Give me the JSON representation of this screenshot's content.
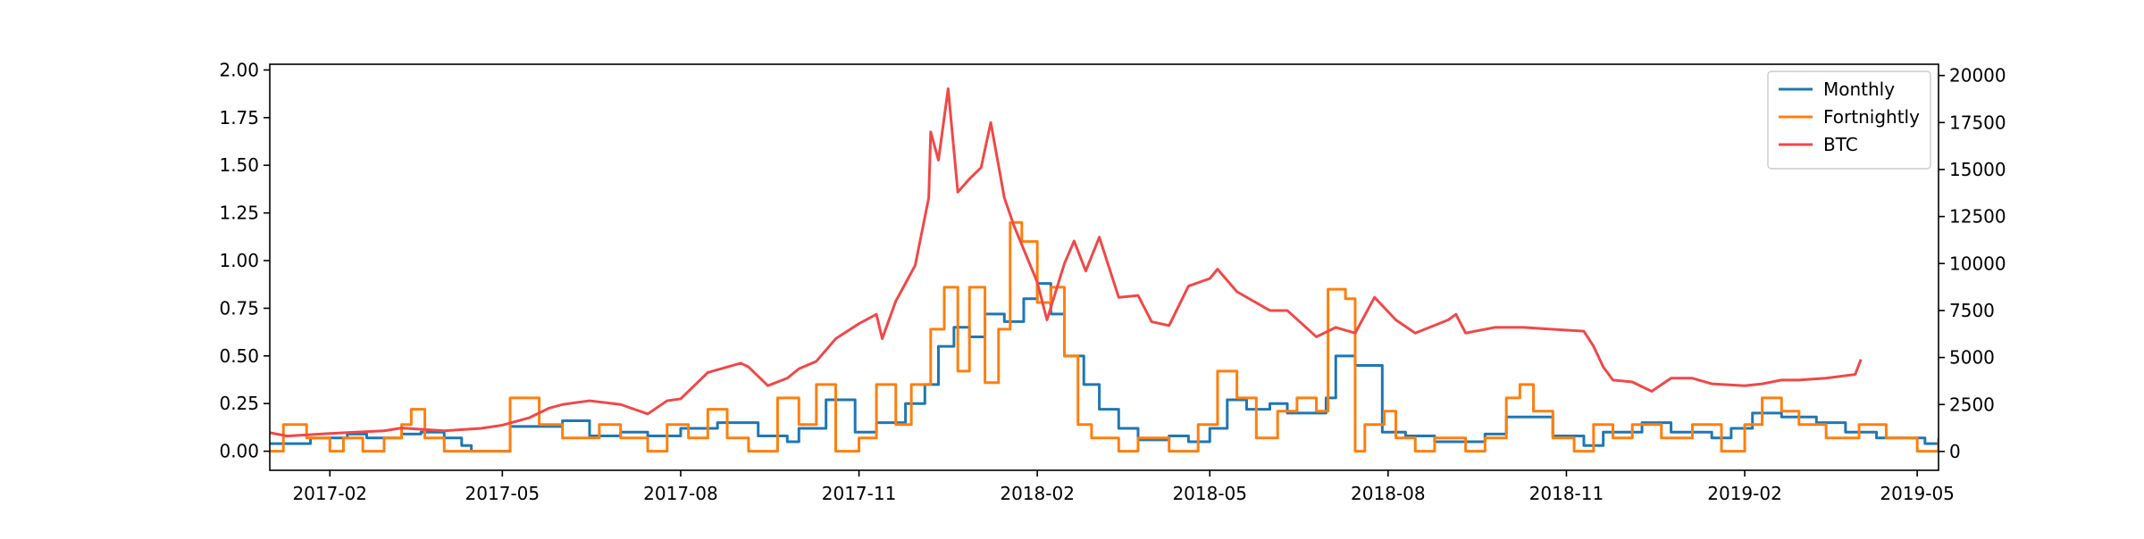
{
  "chart_data": {
    "type": "line",
    "title": "",
    "xlabel": "",
    "ylabel": "",
    "y2label": "",
    "x_range": [
      "2017-01-01",
      "2019-05-12"
    ],
    "ylim_left": [
      -0.1,
      2.03
    ],
    "ylim_right": [
      -1000,
      20600
    ],
    "x_ticks": [
      {
        "date": "2017-02-01",
        "label": "2017-02"
      },
      {
        "date": "2017-05-01",
        "label": "2017-05"
      },
      {
        "date": "2017-08-01",
        "label": "2017-08"
      },
      {
        "date": "2017-11-01",
        "label": "2017-11"
      },
      {
        "date": "2018-02-01",
        "label": "2018-02"
      },
      {
        "date": "2018-05-01",
        "label": "2018-05"
      },
      {
        "date": "2018-08-01",
        "label": "2018-08"
      },
      {
        "date": "2018-11-01",
        "label": "2018-11"
      },
      {
        "date": "2019-02-01",
        "label": "2019-02"
      },
      {
        "date": "2019-05-01",
        "label": "2019-05"
      }
    ],
    "y_ticks_left": [
      {
        "value": 0.0,
        "label": "0.00"
      },
      {
        "value": 0.25,
        "label": "0.25"
      },
      {
        "value": 0.5,
        "label": "0.50"
      },
      {
        "value": 0.75,
        "label": "0.75"
      },
      {
        "value": 1.0,
        "label": "1.00"
      },
      {
        "value": 1.25,
        "label": "1.25"
      },
      {
        "value": 1.5,
        "label": "1.50"
      },
      {
        "value": 1.75,
        "label": "1.75"
      },
      {
        "value": 2.0,
        "label": "2.00"
      }
    ],
    "y_ticks_right": [
      {
        "value": 0,
        "label": "0"
      },
      {
        "value": 2500,
        "label": "2500"
      },
      {
        "value": 5000,
        "label": "5000"
      },
      {
        "value": 7500,
        "label": "7500"
      },
      {
        "value": 10000,
        "label": "10000"
      },
      {
        "value": 12500,
        "label": "12500"
      },
      {
        "value": 15000,
        "label": "15000"
      },
      {
        "value": 17500,
        "label": "17500"
      },
      {
        "value": 20000,
        "label": "20000"
      }
    ],
    "grid": false,
    "legend_position": "top-right",
    "series": [
      {
        "name": "Monthly",
        "axis": "left",
        "color": "#1f77b4",
        "step": true,
        "points": [
          [
            "2017-01-01",
            0.04
          ],
          [
            "2017-01-22",
            0.07
          ],
          [
            "2017-02-10",
            0.09
          ],
          [
            "2017-02-20",
            0.07
          ],
          [
            "2017-03-10",
            0.09
          ],
          [
            "2017-03-20",
            0.1
          ],
          [
            "2017-04-01",
            0.07
          ],
          [
            "2017-04-10",
            0.03
          ],
          [
            "2017-04-15",
            0.0
          ],
          [
            "2017-05-01",
            0.0
          ],
          [
            "2017-05-05",
            0.13
          ],
          [
            "2017-06-01",
            0.16
          ],
          [
            "2017-06-15",
            0.08
          ],
          [
            "2017-07-01",
            0.1
          ],
          [
            "2017-07-15",
            0.08
          ],
          [
            "2017-08-01",
            0.12
          ],
          [
            "2017-08-20",
            0.15
          ],
          [
            "2017-09-10",
            0.08
          ],
          [
            "2017-09-25",
            0.05
          ],
          [
            "2017-10-01",
            0.12
          ],
          [
            "2017-10-15",
            0.27
          ],
          [
            "2017-10-30",
            0.1
          ],
          [
            "2017-11-10",
            0.15
          ],
          [
            "2017-11-25",
            0.25
          ],
          [
            "2017-12-05",
            0.35
          ],
          [
            "2017-12-12",
            0.55
          ],
          [
            "2017-12-20",
            0.65
          ],
          [
            "2017-12-28",
            0.6
          ],
          [
            "2018-01-05",
            0.72
          ],
          [
            "2018-01-15",
            0.68
          ],
          [
            "2018-01-25",
            0.8
          ],
          [
            "2018-02-01",
            0.88
          ],
          [
            "2018-02-08",
            0.72
          ],
          [
            "2018-02-15",
            0.5
          ],
          [
            "2018-02-25",
            0.35
          ],
          [
            "2018-03-05",
            0.22
          ],
          [
            "2018-03-15",
            0.12
          ],
          [
            "2018-03-25",
            0.06
          ],
          [
            "2018-04-10",
            0.08
          ],
          [
            "2018-04-20",
            0.05
          ],
          [
            "2018-05-01",
            0.12
          ],
          [
            "2018-05-10",
            0.27
          ],
          [
            "2018-05-20",
            0.22
          ],
          [
            "2018-06-01",
            0.25
          ],
          [
            "2018-06-10",
            0.2
          ],
          [
            "2018-06-20",
            0.2
          ],
          [
            "2018-06-30",
            0.28
          ],
          [
            "2018-07-05",
            0.5
          ],
          [
            "2018-07-15",
            0.45
          ],
          [
            "2018-07-25",
            0.45
          ],
          [
            "2018-07-29",
            0.1
          ],
          [
            "2018-08-10",
            0.08
          ],
          [
            "2018-08-25",
            0.05
          ],
          [
            "2018-09-10",
            0.05
          ],
          [
            "2018-09-20",
            0.09
          ],
          [
            "2018-10-01",
            0.18
          ],
          [
            "2018-10-15",
            0.18
          ],
          [
            "2018-10-25",
            0.08
          ],
          [
            "2018-11-10",
            0.03
          ],
          [
            "2018-11-20",
            0.1
          ],
          [
            "2018-12-10",
            0.15
          ],
          [
            "2018-12-25",
            0.1
          ],
          [
            "2019-01-15",
            0.07
          ],
          [
            "2019-01-25",
            0.12
          ],
          [
            "2019-02-05",
            0.2
          ],
          [
            "2019-02-20",
            0.18
          ],
          [
            "2019-03-10",
            0.15
          ],
          [
            "2019-03-25",
            0.1
          ],
          [
            "2019-04-10",
            0.07
          ],
          [
            "2019-04-25",
            0.07
          ],
          [
            "2019-05-05",
            0.04
          ],
          [
            "2019-05-12",
            0.04
          ]
        ]
      },
      {
        "name": "Fortnightly",
        "axis": "left",
        "color": "#ff7f0e",
        "step": true,
        "points": [
          [
            "2017-01-01",
            0.0
          ],
          [
            "2017-01-08",
            0.14
          ],
          [
            "2017-01-20",
            0.07
          ],
          [
            "2017-02-01",
            0.0
          ],
          [
            "2017-02-08",
            0.07
          ],
          [
            "2017-02-18",
            0.0
          ],
          [
            "2017-03-01",
            0.07
          ],
          [
            "2017-03-10",
            0.14
          ],
          [
            "2017-03-15",
            0.22
          ],
          [
            "2017-03-22",
            0.07
          ],
          [
            "2017-04-01",
            0.0
          ],
          [
            "2017-05-01",
            0.0
          ],
          [
            "2017-05-05",
            0.28
          ],
          [
            "2017-05-20",
            0.14
          ],
          [
            "2017-06-01",
            0.07
          ],
          [
            "2017-06-20",
            0.14
          ],
          [
            "2017-07-01",
            0.07
          ],
          [
            "2017-07-15",
            0.0
          ],
          [
            "2017-07-25",
            0.14
          ],
          [
            "2017-08-05",
            0.07
          ],
          [
            "2017-08-15",
            0.22
          ],
          [
            "2017-08-25",
            0.07
          ],
          [
            "2017-09-05",
            0.0
          ],
          [
            "2017-09-20",
            0.28
          ],
          [
            "2017-10-01",
            0.14
          ],
          [
            "2017-10-10",
            0.35
          ],
          [
            "2017-10-20",
            0.0
          ],
          [
            "2017-11-01",
            0.07
          ],
          [
            "2017-11-10",
            0.35
          ],
          [
            "2017-11-20",
            0.14
          ],
          [
            "2017-11-28",
            0.35
          ],
          [
            "2017-12-08",
            0.64
          ],
          [
            "2017-12-15",
            0.86
          ],
          [
            "2017-12-22",
            0.42
          ],
          [
            "2017-12-28",
            0.86
          ],
          [
            "2018-01-05",
            0.36
          ],
          [
            "2018-01-12",
            0.64
          ],
          [
            "2018-01-18",
            1.2
          ],
          [
            "2018-01-24",
            1.1
          ],
          [
            "2018-02-01",
            0.78
          ],
          [
            "2018-02-08",
            0.86
          ],
          [
            "2018-02-15",
            0.5
          ],
          [
            "2018-02-22",
            0.14
          ],
          [
            "2018-03-01",
            0.07
          ],
          [
            "2018-03-15",
            0.0
          ],
          [
            "2018-03-25",
            0.07
          ],
          [
            "2018-04-10",
            0.0
          ],
          [
            "2018-04-25",
            0.14
          ],
          [
            "2018-05-05",
            0.42
          ],
          [
            "2018-05-15",
            0.28
          ],
          [
            "2018-05-25",
            0.07
          ],
          [
            "2018-06-05",
            0.21
          ],
          [
            "2018-06-15",
            0.28
          ],
          [
            "2018-06-25",
            0.21
          ],
          [
            "2018-07-01",
            0.85
          ],
          [
            "2018-07-10",
            0.8
          ],
          [
            "2018-07-15",
            0.0
          ],
          [
            "2018-07-20",
            0.14
          ],
          [
            "2018-07-30",
            0.21
          ],
          [
            "2018-08-05",
            0.07
          ],
          [
            "2018-08-15",
            0.0
          ],
          [
            "2018-08-25",
            0.07
          ],
          [
            "2018-09-10",
            0.0
          ],
          [
            "2018-09-20",
            0.07
          ],
          [
            "2018-10-01",
            0.28
          ],
          [
            "2018-10-08",
            0.35
          ],
          [
            "2018-10-15",
            0.21
          ],
          [
            "2018-10-25",
            0.07
          ],
          [
            "2018-11-05",
            0.0
          ],
          [
            "2018-11-15",
            0.14
          ],
          [
            "2018-11-25",
            0.07
          ],
          [
            "2018-12-05",
            0.14
          ],
          [
            "2018-12-20",
            0.07
          ],
          [
            "2019-01-05",
            0.14
          ],
          [
            "2019-01-20",
            0.0
          ],
          [
            "2019-02-01",
            0.14
          ],
          [
            "2019-02-10",
            0.28
          ],
          [
            "2019-02-20",
            0.21
          ],
          [
            "2019-03-01",
            0.14
          ],
          [
            "2019-03-15",
            0.07
          ],
          [
            "2019-04-01",
            0.14
          ],
          [
            "2019-04-15",
            0.07
          ],
          [
            "2019-05-01",
            0.0
          ],
          [
            "2019-05-12",
            0.07
          ]
        ]
      },
      {
        "name": "BTC",
        "axis": "right",
        "color": "#f04848",
        "step": false,
        "points": [
          [
            "2017-01-01",
            1000
          ],
          [
            "2017-01-10",
            820
          ],
          [
            "2017-02-01",
            960
          ],
          [
            "2017-03-01",
            1100
          ],
          [
            "2017-03-10",
            1250
          ],
          [
            "2017-04-01",
            1100
          ],
          [
            "2017-04-20",
            1230
          ],
          [
            "2017-05-01",
            1400
          ],
          [
            "2017-05-15",
            1800
          ],
          [
            "2017-05-25",
            2300
          ],
          [
            "2017-06-01",
            2500
          ],
          [
            "2017-06-15",
            2700
          ],
          [
            "2017-07-01",
            2500
          ],
          [
            "2017-07-15",
            2000
          ],
          [
            "2017-07-25",
            2700
          ],
          [
            "2017-08-01",
            2800
          ],
          [
            "2017-08-15",
            4200
          ],
          [
            "2017-09-01",
            4700
          ],
          [
            "2017-09-05",
            4500
          ],
          [
            "2017-09-15",
            3500
          ],
          [
            "2017-09-25",
            3900
          ],
          [
            "2017-10-01",
            4400
          ],
          [
            "2017-10-10",
            4800
          ],
          [
            "2017-10-20",
            6000
          ],
          [
            "2017-11-01",
            6800
          ],
          [
            "2017-11-10",
            7300
          ],
          [
            "2017-11-13",
            6000
          ],
          [
            "2017-11-20",
            8000
          ],
          [
            "2017-11-30",
            9900
          ],
          [
            "2017-12-07",
            13500
          ],
          [
            "2017-12-08",
            17000
          ],
          [
            "2017-12-12",
            15500
          ],
          [
            "2017-12-17",
            19300
          ],
          [
            "2017-12-22",
            13800
          ],
          [
            "2017-12-28",
            14500
          ],
          [
            "2018-01-03",
            15100
          ],
          [
            "2018-01-08",
            17500
          ],
          [
            "2018-01-15",
            13500
          ],
          [
            "2018-01-20",
            12000
          ],
          [
            "2018-02-01",
            9000
          ],
          [
            "2018-02-06",
            7000
          ],
          [
            "2018-02-15",
            10000
          ],
          [
            "2018-02-20",
            11200
          ],
          [
            "2018-02-26",
            9600
          ],
          [
            "2018-03-05",
            11400
          ],
          [
            "2018-03-15",
            8200
          ],
          [
            "2018-03-25",
            8300
          ],
          [
            "2018-04-01",
            6900
          ],
          [
            "2018-04-10",
            6700
          ],
          [
            "2018-04-20",
            8800
          ],
          [
            "2018-05-01",
            9200
          ],
          [
            "2018-05-05",
            9700
          ],
          [
            "2018-05-15",
            8500
          ],
          [
            "2018-06-01",
            7500
          ],
          [
            "2018-06-10",
            7500
          ],
          [
            "2018-06-25",
            6100
          ],
          [
            "2018-07-05",
            6600
          ],
          [
            "2018-07-15",
            6300
          ],
          [
            "2018-07-25",
            8200
          ],
          [
            "2018-08-05",
            7000
          ],
          [
            "2018-08-15",
            6300
          ],
          [
            "2018-09-01",
            7000
          ],
          [
            "2018-09-05",
            7300
          ],
          [
            "2018-09-10",
            6300
          ],
          [
            "2018-09-25",
            6600
          ],
          [
            "2018-10-10",
            6600
          ],
          [
            "2018-10-25",
            6500
          ],
          [
            "2018-11-10",
            6400
          ],
          [
            "2018-11-15",
            5600
          ],
          [
            "2018-11-20",
            4500
          ],
          [
            "2018-11-25",
            3800
          ],
          [
            "2018-12-05",
            3700
          ],
          [
            "2018-12-15",
            3200
          ],
          [
            "2018-12-25",
            3900
          ],
          [
            "2019-01-05",
            3900
          ],
          [
            "2019-01-15",
            3600
          ],
          [
            "2019-02-01",
            3500
          ],
          [
            "2019-02-10",
            3600
          ],
          [
            "2019-02-20",
            3800
          ],
          [
            "2019-03-01",
            3800
          ],
          [
            "2019-03-15",
            3900
          ],
          [
            "2019-03-30",
            4100
          ],
          [
            "2019-04-02",
            4900
          ]
        ]
      }
    ]
  }
}
